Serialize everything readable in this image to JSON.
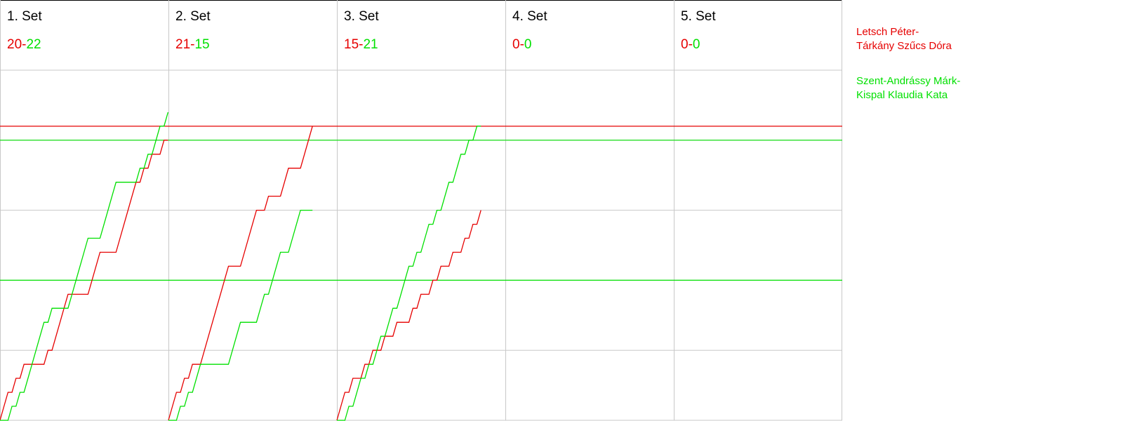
{
  "chart_data": {
    "type": "line",
    "separator": "-",
    "ylim": [
      0,
      25
    ],
    "yticks": [
      5,
      10,
      15,
      20
    ],
    "grid": true,
    "series": [
      {
        "name_lines": [
          "Letsch Péter-",
          "Tárkány Szűcs Dóra"
        ],
        "color": "#e60000"
      },
      {
        "name_lines": [
          "Szent-Andrássy Márk-",
          "Kispal Klaudia Kata"
        ],
        "color": "#00e000"
      }
    ],
    "reference_lines": [
      {
        "value": 21,
        "color": "#e60000"
      },
      {
        "value": 20,
        "color": "#00e000"
      },
      {
        "value": 10,
        "color": "#00e000"
      }
    ],
    "sets": [
      {
        "title": "1. Set",
        "scores": [
          20,
          22
        ],
        "values": [
          [
            0,
            1,
            2,
            2,
            3,
            3,
            4,
            4,
            4,
            4,
            4,
            4,
            5,
            5,
            6,
            7,
            8,
            9,
            9,
            9,
            9,
            9,
            9,
            10,
            11,
            12,
            12,
            12,
            12,
            12,
            13,
            14,
            15,
            16,
            17,
            17,
            18,
            18,
            19,
            19,
            19,
            20,
            20
          ],
          [
            0,
            0,
            0,
            1,
            1,
            2,
            2,
            3,
            4,
            5,
            6,
            7,
            7,
            8,
            8,
            8,
            8,
            8,
            9,
            10,
            11,
            12,
            13,
            13,
            13,
            13,
            14,
            15,
            16,
            17,
            17,
            17,
            17,
            17,
            17,
            18,
            18,
            19,
            19,
            20,
            21,
            21,
            22
          ]
        ]
      },
      {
        "title": "2. Set",
        "scores": [
          21,
          15
        ],
        "values": [
          [
            0,
            1,
            2,
            2,
            3,
            3,
            4,
            4,
            4,
            5,
            6,
            7,
            8,
            9,
            10,
            11,
            11,
            11,
            11,
            12,
            13,
            14,
            15,
            15,
            15,
            16,
            16,
            16,
            16,
            17,
            18,
            18,
            18,
            18,
            19,
            20,
            21
          ],
          [
            0,
            0,
            0,
            1,
            1,
            2,
            2,
            3,
            4,
            4,
            4,
            4,
            4,
            4,
            4,
            4,
            5,
            6,
            7,
            7,
            7,
            7,
            7,
            8,
            9,
            9,
            10,
            11,
            12,
            12,
            12,
            13,
            14,
            15,
            15,
            15,
            15
          ]
        ]
      },
      {
        "title": "3. Set",
        "scores": [
          15,
          21
        ],
        "values": [
          [
            0,
            1,
            2,
            2,
            3,
            3,
            3,
            4,
            4,
            5,
            5,
            5,
            6,
            6,
            6,
            7,
            7,
            7,
            7,
            8,
            8,
            9,
            9,
            9,
            10,
            10,
            11,
            11,
            11,
            12,
            12,
            12,
            13,
            13,
            14,
            14,
            15
          ],
          [
            0,
            0,
            0,
            1,
            1,
            2,
            3,
            3,
            4,
            4,
            5,
            6,
            6,
            7,
            8,
            8,
            9,
            10,
            11,
            11,
            12,
            12,
            13,
            14,
            14,
            15,
            15,
            16,
            17,
            17,
            18,
            19,
            19,
            20,
            20,
            21,
            21
          ]
        ]
      },
      {
        "title": "4. Set",
        "scores": [
          0,
          0
        ]
      },
      {
        "title": "5. Set",
        "scores": [
          0,
          0
        ]
      }
    ]
  }
}
